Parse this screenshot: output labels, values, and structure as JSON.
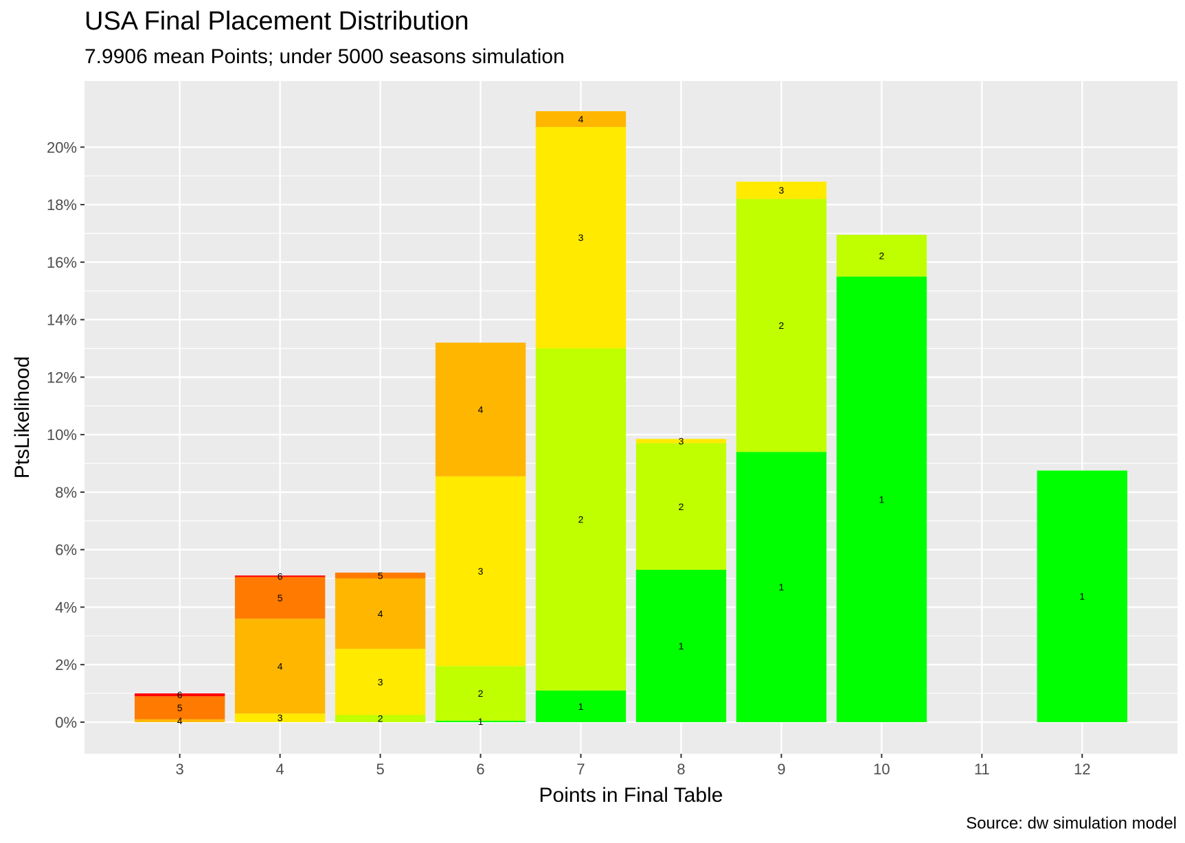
{
  "chart_data": {
    "type": "bar",
    "stacked": true,
    "title": "USA Final Placement Distribution",
    "subtitle": "7.9906 mean Points; under 5000 seasons simulation",
    "caption": "Source:  dw simulation model",
    "xlabel": "Points in Final Table",
    "ylabel": "PtsLikelihood",
    "x_ticks": [
      3,
      4,
      5,
      6,
      7,
      8,
      9,
      10,
      11,
      12
    ],
    "xlim": [
      2.05,
      12.95
    ],
    "ylim": [
      -0.011,
      0.223
    ],
    "y_ticks": [
      0,
      0.02,
      0.04,
      0.06,
      0.08,
      0.1,
      0.12,
      0.14,
      0.16,
      0.18,
      0.2
    ],
    "y_tick_labels": [
      "0%",
      "2%",
      "4%",
      "6%",
      "8%",
      "10%",
      "12%",
      "14%",
      "16%",
      "18%",
      "20%"
    ],
    "grid": true,
    "legend": "none",
    "place_colors": {
      "1": "#00FF00",
      "2": "#BFFF00",
      "3": "#FFEA00",
      "4": "#FFB600",
      "5": "#FF7A00",
      "6": "#FF0000"
    },
    "bars": [
      {
        "x": 3,
        "segments": [
          {
            "place": 4,
            "value": 0.001
          },
          {
            "place": 5,
            "value": 0.008
          },
          {
            "place": 6,
            "value": 0.001
          }
        ]
      },
      {
        "x": 4,
        "segments": [
          {
            "place": 3,
            "value": 0.003
          },
          {
            "place": 4,
            "value": 0.033
          },
          {
            "place": 5,
            "value": 0.0145
          },
          {
            "place": 6,
            "value": 0.0005
          }
        ]
      },
      {
        "x": 5,
        "segments": [
          {
            "place": 2,
            "value": 0.0025
          },
          {
            "place": 3,
            "value": 0.023
          },
          {
            "place": 4,
            "value": 0.0245
          },
          {
            "place": 5,
            "value": 0.002
          }
        ]
      },
      {
        "x": 6,
        "segments": [
          {
            "place": 1,
            "value": 0.0005
          },
          {
            "place": 2,
            "value": 0.019
          },
          {
            "place": 3,
            "value": 0.066
          },
          {
            "place": 4,
            "value": 0.0465
          }
        ]
      },
      {
        "x": 7,
        "segments": [
          {
            "place": 1,
            "value": 0.011
          },
          {
            "place": 2,
            "value": 0.119
          },
          {
            "place": 3,
            "value": 0.077
          },
          {
            "place": 4,
            "value": 0.0055
          }
        ]
      },
      {
        "x": 8,
        "segments": [
          {
            "place": 1,
            "value": 0.053
          },
          {
            "place": 2,
            "value": 0.044
          },
          {
            "place": 3,
            "value": 0.0015
          }
        ]
      },
      {
        "x": 9,
        "segments": [
          {
            "place": 1,
            "value": 0.094
          },
          {
            "place": 2,
            "value": 0.088
          },
          {
            "place": 3,
            "value": 0.006
          }
        ]
      },
      {
        "x": 10,
        "segments": [
          {
            "place": 1,
            "value": 0.155
          },
          {
            "place": 2,
            "value": 0.0145
          }
        ]
      },
      {
        "x": 12,
        "segments": [
          {
            "place": 1,
            "value": 0.0875
          }
        ]
      }
    ]
  }
}
